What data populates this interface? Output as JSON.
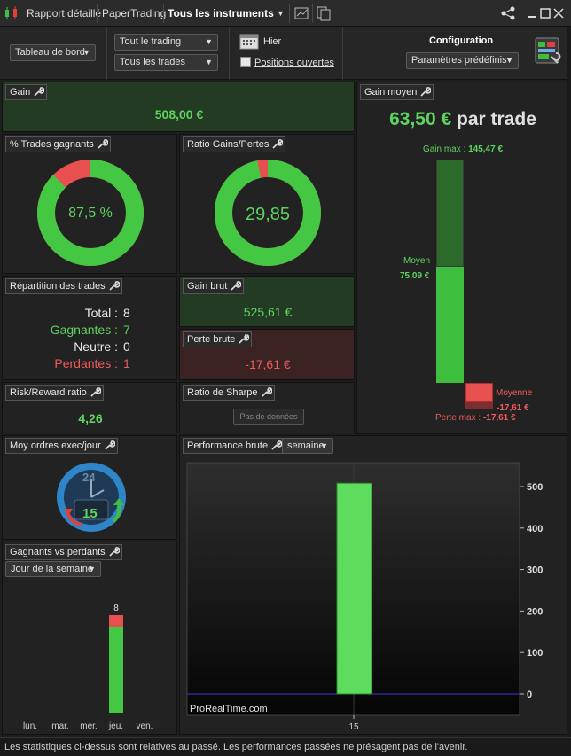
{
  "titlebar": {
    "tab_report": "Rapport détaillé",
    "tab_mode": "PaperTrading",
    "instruments": "Tous les instruments"
  },
  "toolbar": {
    "dashboard": "Tableau de bord",
    "trading_filter": "Tout le trading",
    "trades_filter": "Tous les trades",
    "period": "Hier",
    "open_positions": "Positions ouvertes",
    "config_title": "Configuration",
    "presets": "Paramètres prédéfinis"
  },
  "gain": {
    "title": "Gain",
    "value": "508,00 €"
  },
  "avg_gain": {
    "title": "Gain moyen",
    "value": "63,50 €",
    "per_trade": "par trade",
    "max_label": "Gain max :",
    "max_value": "145,47 €",
    "avg_label": "Moyen",
    "avg_value": "75,09 €",
    "avg_loss_label": "Moyenne",
    "avg_loss_value": "-17,61 €",
    "loss_max_label": "Perte max :",
    "loss_max_value": "-17,61 €"
  },
  "win_pct": {
    "title": "% Trades gagnants",
    "value": "87,5 %",
    "fraction": 0.875
  },
  "ratio": {
    "title": "Ratio Gains/Pertes",
    "value": "29,85",
    "fraction": 0.967
  },
  "distribution": {
    "title": "Répartition des trades",
    "total_label": "Total :",
    "total": "8",
    "win_label": "Gagnantes :",
    "win": "7",
    "neutral_label": "Neutre :",
    "neutral": "0",
    "loss_label": "Perdantes :",
    "loss": "1"
  },
  "gross_gain": {
    "title": "Gain brut",
    "value": "525,61 €"
  },
  "gross_loss": {
    "title": "Perte brute",
    "value": "-17,61 €"
  },
  "risk_reward": {
    "title": "Risk/Reward ratio",
    "value": "4,26"
  },
  "sharpe": {
    "title": "Ratio de Sharpe",
    "value": "Pas de données"
  },
  "orders": {
    "title": "Moy ordres exec/jour",
    "clock_top": "24",
    "clock_value": "15"
  },
  "win_loss": {
    "title": "Gagnants vs perdants",
    "filter": "Jour de la semaine",
    "days": [
      "lun.",
      "mar.",
      "mer.",
      "jeu.",
      "ven."
    ],
    "count_label": "8"
  },
  "performance": {
    "title": "Performance brute",
    "period": "semaine",
    "watermark": "ProRealTime.com"
  },
  "chart_data": {
    "type": "bar",
    "categories": [
      "15"
    ],
    "values": [
      508
    ],
    "ylim": [
      0,
      580
    ],
    "yticks": [
      0,
      100,
      200,
      300,
      400,
      500
    ],
    "xlabel": "",
    "ylabel": ""
  },
  "day_chart": {
    "type": "bar",
    "categories": [
      "lun.",
      "mar.",
      "mer.",
      "jeu.",
      "ven."
    ],
    "wins": [
      0,
      0,
      0,
      7,
      0
    ],
    "losses": [
      0,
      0,
      0,
      1,
      0
    ]
  },
  "footer": "Les statistiques ci-dessus sont relatives au passé. Les performances passées ne présagent pas de l'avenir."
}
